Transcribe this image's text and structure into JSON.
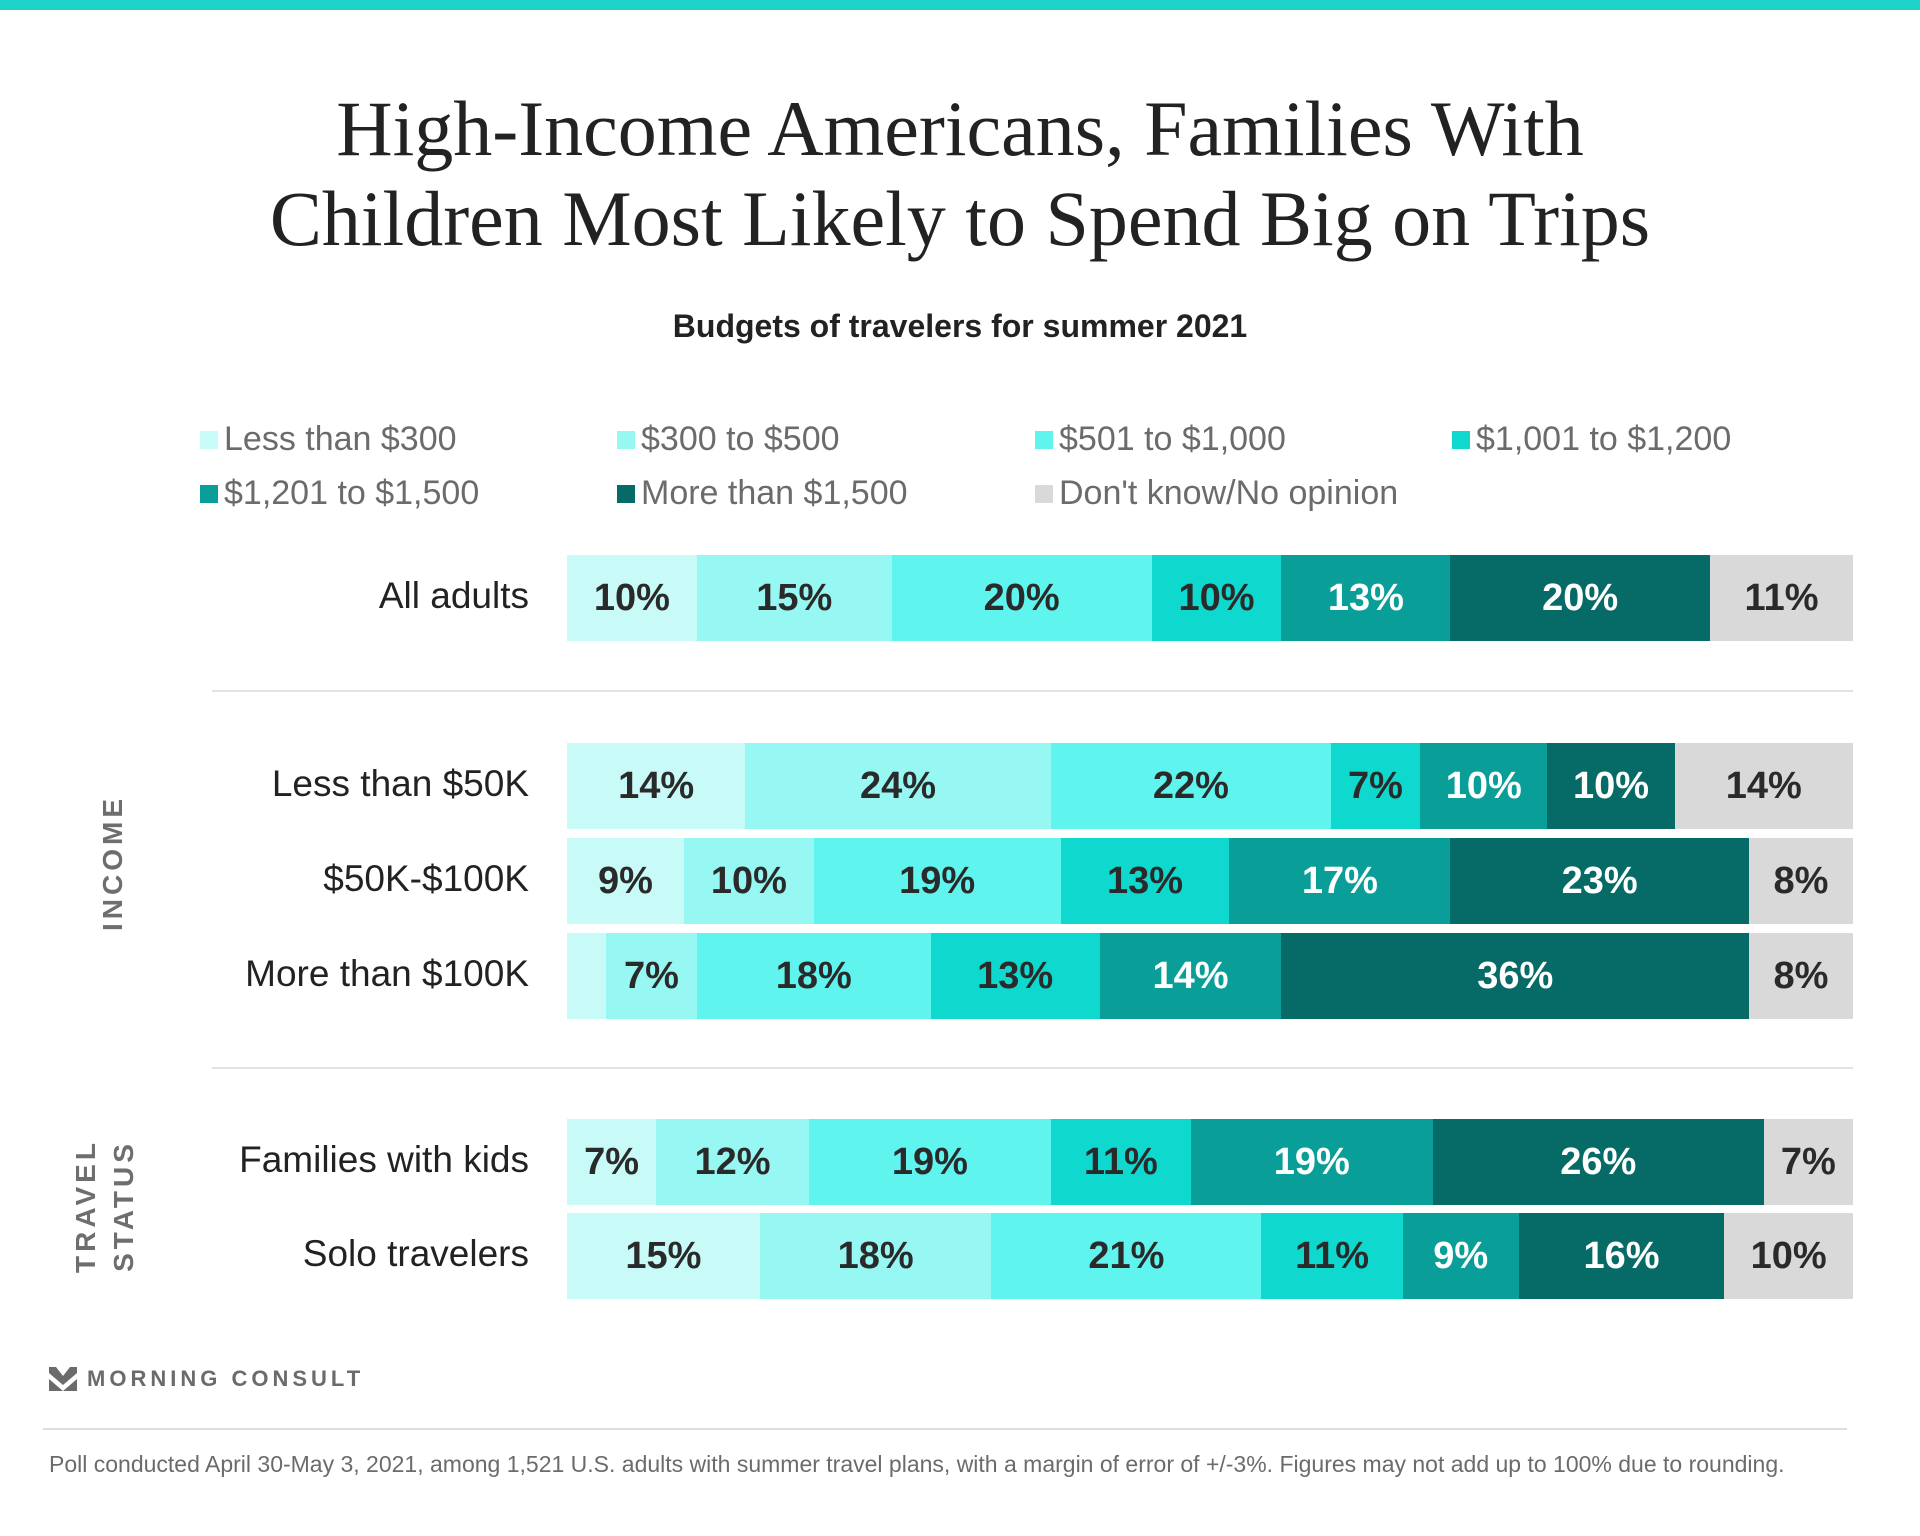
{
  "colors": {
    "accent_stripe": "#1dd3c7",
    "series": [
      "#c8fbf8",
      "#97f7f3",
      "#60f4ee",
      "#0fd9cf",
      "#0a9e98",
      "#066b66",
      "#d9d9d9"
    ],
    "label_dark": "#2a2a2a",
    "label_light": "#ffffff"
  },
  "chart_data": {
    "type": "bar",
    "orientation": "horizontal-stacked-100",
    "title_lines": [
      "High-Income Americans, Families With",
      "Children Most Likely to Spend Big on Trips"
    ],
    "subtitle": "Budgets of travelers for summer 2021",
    "legend_placement": "top",
    "series_names": [
      "Less than $300",
      "$300 to $500",
      "$501 to $1,000",
      "$1,001 to $1,200",
      "$1,201 to $1,500",
      "More than $1,500",
      "Don't know/No opinion"
    ],
    "groups": [
      {
        "label": "",
        "lines": []
      },
      {
        "label": "INCOME",
        "lines": [
          "INCOME"
        ]
      },
      {
        "label": "TRAVEL STATUS",
        "lines": [
          "TRAVEL",
          "STATUS"
        ]
      }
    ],
    "rows": [
      {
        "category": "All adults",
        "group": 0,
        "values": [
          10,
          15,
          20,
          10,
          13,
          20,
          11
        ],
        "labels": [
          "10%",
          "15%",
          "20%",
          "10%",
          "13%",
          "20%",
          "11%"
        ]
      },
      {
        "category": "Less than $50K",
        "group": 1,
        "values": [
          14,
          24,
          22,
          7,
          10,
          10,
          14
        ],
        "labels": [
          "14%",
          "24%",
          "22%",
          "7%",
          "10%",
          "10%",
          "14%"
        ]
      },
      {
        "category": "$50K-$100K",
        "group": 1,
        "values": [
          9,
          10,
          19,
          13,
          17,
          23,
          8
        ],
        "labels": [
          "9%",
          "10%",
          "19%",
          "13%",
          "17%",
          "23%",
          "8%"
        ]
      },
      {
        "category": "More than $100K",
        "group": 1,
        "values": [
          3,
          7,
          18,
          13,
          14,
          36,
          8
        ],
        "labels": [
          "",
          "7%",
          "18%",
          "13%",
          "14%",
          "36%",
          "8%"
        ]
      },
      {
        "category": "Families with kids",
        "group": 2,
        "values": [
          7,
          12,
          19,
          11,
          19,
          26,
          7
        ],
        "labels": [
          "7%",
          "12%",
          "19%",
          "11%",
          "19%",
          "26%",
          "7%"
        ]
      },
      {
        "category": "Solo travelers",
        "group": 2,
        "values": [
          15,
          18,
          21,
          11,
          9,
          16,
          10
        ],
        "labels": [
          "15%",
          "18%",
          "21%",
          "11%",
          "9%",
          "16%",
          "10%"
        ]
      }
    ],
    "xlim": [
      0,
      100
    ]
  },
  "brand": {
    "name": "MORNING CONSULT"
  },
  "footer": {
    "note": "Poll conducted April 30-May 3, 2021, among 1,521 U.S. adults with summer travel plans, with a margin of error of +/-3%. Figures may not add up to 100% due to rounding."
  }
}
